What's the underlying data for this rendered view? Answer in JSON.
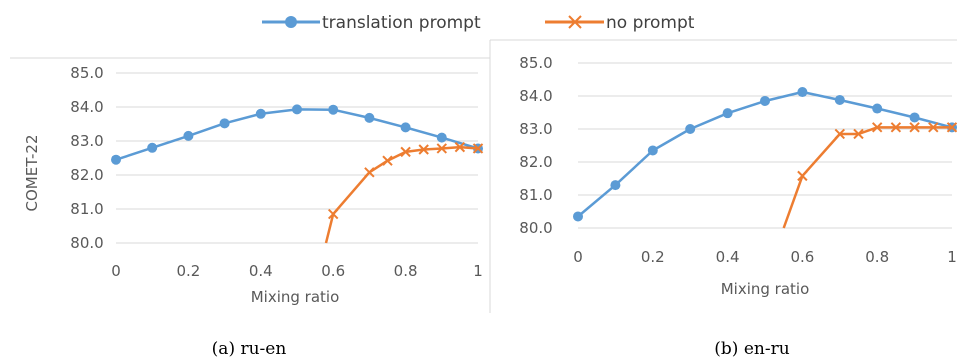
{
  "legend": [
    {
      "name": "translation prompt",
      "color": "#5b9bd5",
      "marker": "circle"
    },
    {
      "name": "no prompt",
      "color": "#ed7d31",
      "marker": "x"
    }
  ],
  "chart_data": [
    {
      "type": "line",
      "caption": "(a) ru-en",
      "xlabel": "Mixing ratio",
      "ylabel": "COMET-22",
      "xlim": [
        0,
        1
      ],
      "ylim": [
        80.0,
        85.0
      ],
      "xticks": [
        "0",
        "0.2",
        "0.4",
        "0.6",
        "0.8",
        "1"
      ],
      "yticks": [
        "80.0",
        "81.0",
        "82.0",
        "83.0",
        "84.0",
        "85.0"
      ],
      "grid": "horizontal",
      "series": [
        {
          "name": "translation prompt",
          "points": [
            [
              0,
              82.45
            ],
            [
              0.1,
              82.8
            ],
            [
              0.2,
              83.15
            ],
            [
              0.3,
              83.52
            ],
            [
              0.4,
              83.8
            ],
            [
              0.5,
              83.93
            ],
            [
              0.6,
              83.92
            ],
            [
              0.7,
              83.68
            ],
            [
              0.8,
              83.4
            ],
            [
              0.9,
              83.1
            ],
            [
              1.0,
              82.78
            ]
          ]
        },
        {
          "name": "no prompt",
          "points": [
            [
              0.58,
              80.0
            ],
            [
              0.6,
              80.85
            ],
            [
              0.7,
              82.08
            ],
            [
              0.75,
              82.42
            ],
            [
              0.8,
              82.68
            ],
            [
              0.85,
              82.75
            ],
            [
              0.9,
              82.78
            ],
            [
              0.95,
              82.82
            ],
            [
              1.0,
              82.78
            ]
          ]
        }
      ]
    },
    {
      "type": "line",
      "caption": "(b) en-ru",
      "xlabel": "Mixing ratio",
      "ylabel": "",
      "xlim": [
        0,
        1
      ],
      "ylim": [
        80.0,
        85.0
      ],
      "xticks": [
        "0",
        "0.2",
        "0.4",
        "0.6",
        "0.8",
        "1"
      ],
      "yticks": [
        "80.0",
        "81.0",
        "82.0",
        "83.0",
        "84.0",
        "85.0"
      ],
      "grid": "horizontal",
      "series": [
        {
          "name": "translation prompt",
          "points": [
            [
              0,
              80.35
            ],
            [
              0.1,
              81.3
            ],
            [
              0.2,
              82.35
            ],
            [
              0.3,
              83.0
            ],
            [
              0.4,
              83.48
            ],
            [
              0.5,
              83.85
            ],
            [
              0.6,
              84.12
            ],
            [
              0.7,
              83.88
            ],
            [
              0.8,
              83.62
            ],
            [
              0.9,
              83.35
            ],
            [
              1.0,
              83.05
            ]
          ]
        },
        {
          "name": "no prompt",
          "points": [
            [
              0.55,
              80.0
            ],
            [
              0.6,
              81.58
            ],
            [
              0.7,
              82.85
            ],
            [
              0.75,
              82.85
            ],
            [
              0.8,
              83.05
            ],
            [
              0.85,
              83.05
            ],
            [
              0.9,
              83.05
            ],
            [
              0.95,
              83.05
            ],
            [
              1.0,
              83.05
            ]
          ]
        }
      ]
    }
  ]
}
